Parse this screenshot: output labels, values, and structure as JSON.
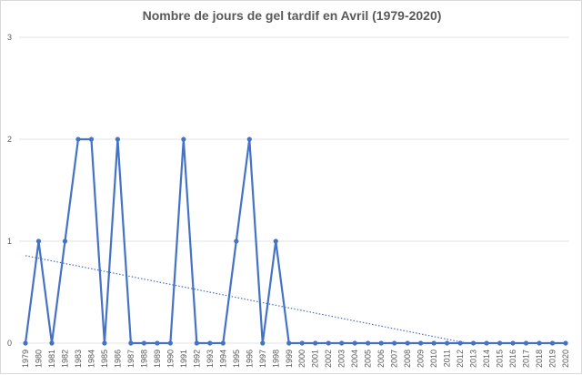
{
  "chart_data": {
    "type": "line",
    "title": "Nombre de jours de gel tardif en Avril (1979-2020)",
    "xlabel": "",
    "ylabel": "",
    "ylim": [
      0,
      3
    ],
    "yticks": [
      "0",
      "1",
      "2",
      "3"
    ],
    "grid": "horizontal",
    "legend": "none",
    "categories": [
      "1979",
      "1980",
      "1981",
      "1982",
      "1983",
      "1984",
      "1985",
      "1986",
      "1987",
      "1988",
      "1989",
      "1990",
      "1991",
      "1992",
      "1993",
      "1994",
      "1995",
      "1996",
      "1997",
      "1998",
      "1999",
      "2000",
      "2001",
      "2002",
      "2003",
      "2004",
      "2005",
      "2006",
      "2007",
      "2008",
      "2009",
      "2010",
      "2011",
      "2012",
      "2013",
      "2014",
      "2015",
      "2016",
      "2017",
      "2018",
      "2019",
      "2020"
    ],
    "series": [
      {
        "values": [
          0,
          1,
          0,
          1,
          2,
          2,
          0,
          2,
          0,
          0,
          0,
          0,
          2,
          0,
          0,
          0,
          1,
          2,
          0,
          1,
          0,
          0,
          0,
          0,
          0,
          0,
          0,
          0,
          0,
          0,
          0,
          0,
          0,
          0,
          0,
          0,
          0,
          0,
          0,
          0,
          0,
          0
        ],
        "color": "#4472c4",
        "marker": "circle"
      }
    ],
    "trendline": {
      "type": "linear",
      "style": "dotted",
      "color": "#4472c4"
    }
  }
}
